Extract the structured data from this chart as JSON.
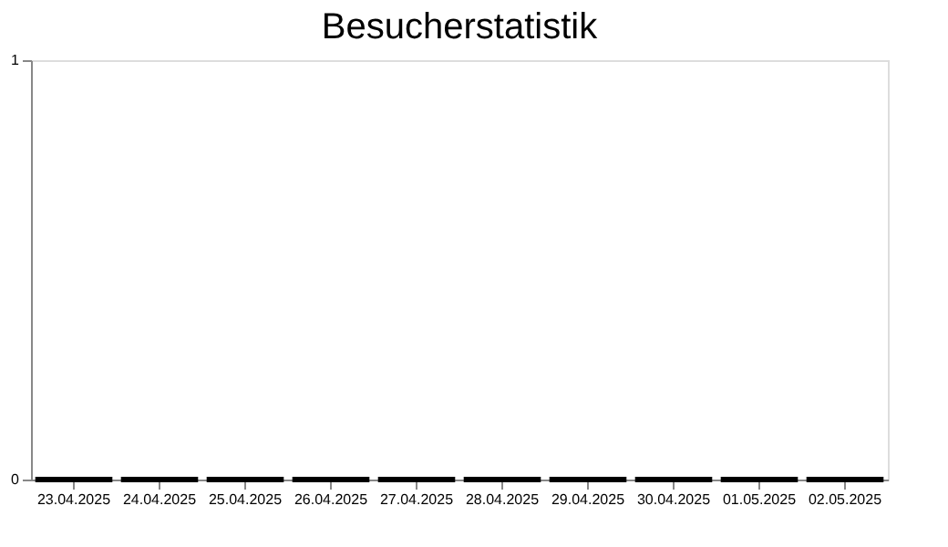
{
  "chart_data": {
    "type": "bar",
    "title": "Besucherstatistik",
    "categories": [
      "23.04.2025",
      "24.04.2025",
      "25.04.2025",
      "26.04.2025",
      "27.04.2025",
      "28.04.2025",
      "29.04.2025",
      "30.04.2025",
      "01.05.2025",
      "02.05.2025"
    ],
    "values": [
      0,
      0,
      0,
      0,
      0,
      0,
      0,
      0,
      0,
      0
    ],
    "color": "#000000",
    "ylim": [
      0,
      1
    ],
    "yticks": [
      0,
      1
    ],
    "grid": false
  }
}
